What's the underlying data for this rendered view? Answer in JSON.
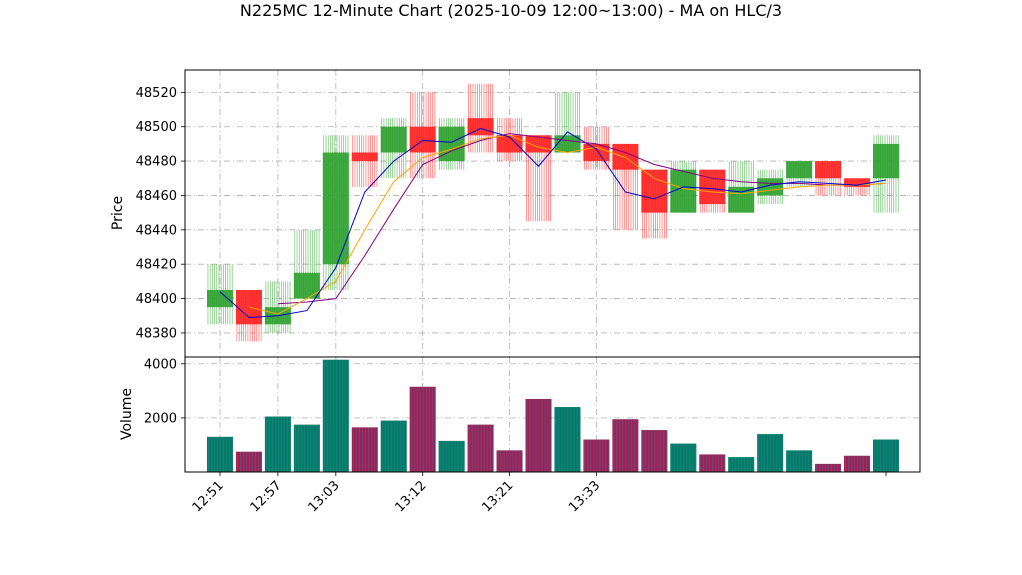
{
  "chart_data": {
    "type": "candlestick",
    "title": "N225MC 12-Minute Chart (2025-10-09 12:00~13:00) - MA on HLC/3",
    "price_panel": {
      "ylabel": "Price",
      "ylim": [
        48366,
        48533
      ],
      "yticks": [
        48380,
        48400,
        48420,
        48440,
        48460,
        48480,
        48500,
        48520
      ],
      "grid": true
    },
    "volume_panel": {
      "ylabel": "Volume",
      "ylim": [
        0,
        4250
      ],
      "yticks": [
        2000,
        4000
      ],
      "grid": true
    },
    "x_ticks": [
      "12:51",
      "12:57",
      "13:03",
      "13:12",
      "13:21",
      "13:33"
    ],
    "colors": {
      "up": "#2ca02c",
      "down": "#ff2020",
      "ma_fast": "#0000cc",
      "ma_mid": "#ffa500",
      "ma_slow": "#800080",
      "volume_up": "#008060",
      "volume_down": "#a02050"
    },
    "candles": [
      {
        "open": 48395,
        "high": 48420,
        "low": 48385,
        "close": 48405,
        "volume": 1300
      },
      {
        "open": 48405,
        "high": 48405,
        "low": 48375,
        "close": 48385,
        "volume": 750
      },
      {
        "open": 48385,
        "high": 48410,
        "low": 48380,
        "close": 48395,
        "volume": 2050
      },
      {
        "open": 48400,
        "high": 48440,
        "low": 48400,
        "close": 48415,
        "volume": 1750
      },
      {
        "open": 48420,
        "high": 48495,
        "low": 48405,
        "close": 48485,
        "volume": 4150
      },
      {
        "open": 48485,
        "high": 48495,
        "low": 48465,
        "close": 48480,
        "volume": 1650
      },
      {
        "open": 48485,
        "high": 48505,
        "low": 48470,
        "close": 48500,
        "volume": 1900
      },
      {
        "open": 48500,
        "high": 48520,
        "low": 48470,
        "close": 48485,
        "volume": 3150
      },
      {
        "open": 48480,
        "high": 48505,
        "low": 48475,
        "close": 48500,
        "volume": 1150
      },
      {
        "open": 48505,
        "high": 48525,
        "low": 48485,
        "close": 48495,
        "volume": 1750
      },
      {
        "open": 48495,
        "high": 48505,
        "low": 48480,
        "close": 48485,
        "volume": 800
      },
      {
        "open": 48495,
        "high": 48495,
        "low": 48445,
        "close": 48485,
        "volume": 2700
      },
      {
        "open": 48485,
        "high": 48520,
        "low": 48485,
        "close": 48495,
        "volume": 2400
      },
      {
        "open": 48490,
        "high": 48500,
        "low": 48475,
        "close": 48480,
        "volume": 1200
      },
      {
        "open": 48490,
        "high": 48490,
        "low": 48440,
        "close": 48475,
        "volume": 1950
      },
      {
        "open": 48475,
        "high": 48475,
        "low": 48435,
        "close": 48450,
        "volume": 1550
      },
      {
        "open": 48450,
        "high": 48480,
        "low": 48450,
        "close": 48475,
        "volume": 1050
      },
      {
        "open": 48475,
        "high": 48475,
        "low": 48450,
        "close": 48455,
        "volume": 650
      },
      {
        "open": 48450,
        "high": 48480,
        "low": 48450,
        "close": 48465,
        "volume": 550
      },
      {
        "open": 48460,
        "high": 48475,
        "low": 48455,
        "close": 48470,
        "volume": 1400
      },
      {
        "open": 48470,
        "high": 48480,
        "low": 48465,
        "close": 48480,
        "volume": 800
      },
      {
        "open": 48480,
        "high": 48480,
        "low": 48460,
        "close": 48470,
        "volume": 300
      },
      {
        "open": 48470,
        "high": 48470,
        "low": 48460,
        "close": 48465,
        "volume": 600
      },
      {
        "open": 48470,
        "high": 48495,
        "low": 48450,
        "close": 48490,
        "volume": 1200
      }
    ],
    "ma_fast": [
      48404,
      48389,
      48390,
      48393,
      48418,
      48462,
      48480,
      48492,
      48491,
      48499,
      48494,
      48477,
      48497,
      48487,
      48462,
      48458,
      48465,
      48464,
      48462,
      48466,
      48468,
      48467,
      48466,
      48469
    ],
    "ma_mid": [
      null,
      48395,
      48391,
      48400,
      48410,
      48440,
      48468,
      48482,
      48487,
      48493,
      48495,
      48488,
      48485,
      48488,
      48482,
      48470,
      48464,
      48462,
      48461,
      48463,
      48465,
      48466,
      48466,
      48467
    ],
    "ma_slow": [
      null,
      null,
      48397,
      48398,
      48400,
      48425,
      48452,
      48478,
      48486,
      48492,
      48496,
      48494,
      48492,
      48490,
      48485,
      48478,
      48474,
      48470,
      48468,
      48467,
      48467,
      48466,
      48466,
      48467
    ]
  }
}
